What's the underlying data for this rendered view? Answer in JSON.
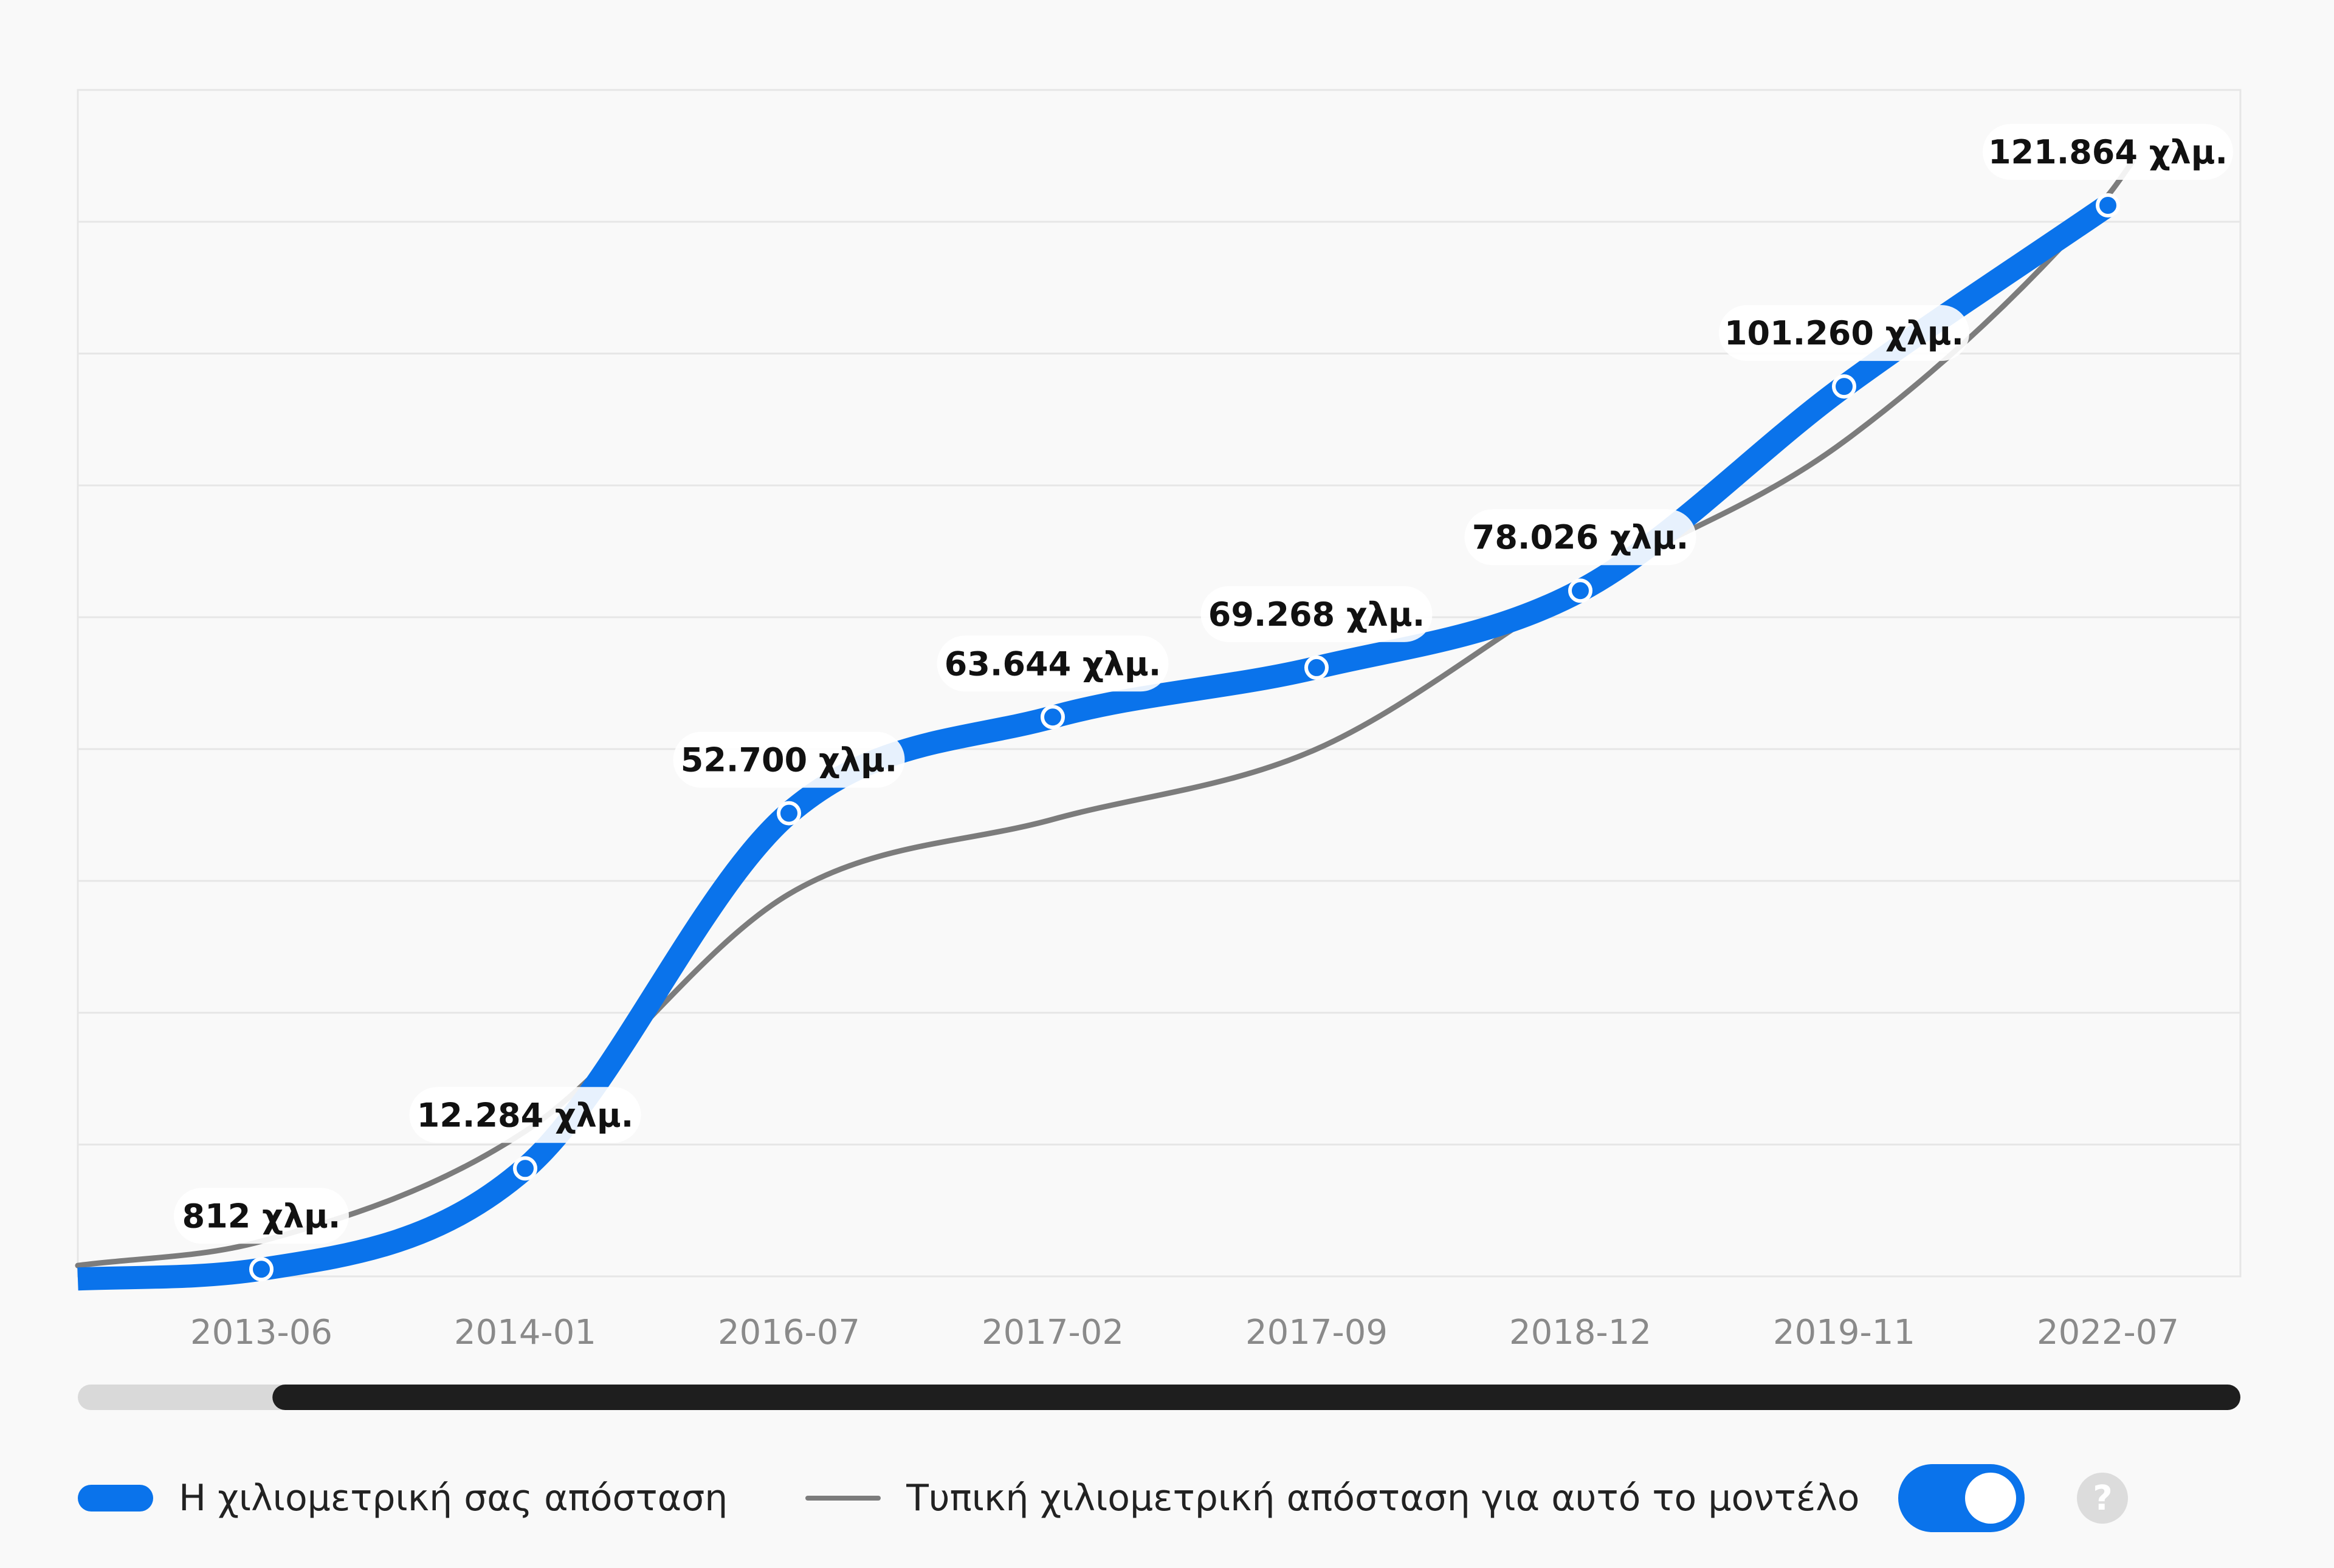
{
  "colors": {
    "user_line": "#0a73eb",
    "typical_line": "#7c7c7c",
    "grid": "#e6e6e6",
    "scrollbar_track": "#d9d9d9",
    "scrollbar_thumb": "#1e1e1e",
    "toggle_on": "#0a73eb"
  },
  "chart_data": {
    "type": "line",
    "title": "",
    "xlabel": "",
    "ylabel": "",
    "categories": [
      "2013-06",
      "2014-01",
      "2016-07",
      "2017-02",
      "2017-09",
      "2018-12",
      "2019-11",
      "2022-07"
    ],
    "data_labels": [
      "812 χλμ.",
      "12.284 χλμ.",
      "52.700 χλμ.",
      "63.644 χλμ.",
      "69.268 χλμ.",
      "78.026 χλμ.",
      "101.260 χλμ.",
      "121.864 χλμ."
    ],
    "series": [
      {
        "name": "Η χιλιομετρική σας απόσταση",
        "values": [
          812,
          12284,
          52700,
          63644,
          69268,
          78026,
          101260,
          121864
        ]
      },
      {
        "name": "Τυπική χιλιομετρική απόσταση για αυτό το μοντέλο",
        "values": [
          4000,
          16500,
          43500,
          52000,
          60000,
          78500,
          95000,
          123000
        ]
      }
    ],
    "ylim": [
      0,
      135000
    ],
    "grid": true,
    "y_tick_labels_shown": false,
    "legend_position": "bottom-left",
    "scrollbar": {
      "visible_start_fraction": 0.09,
      "visible_end_fraction": 1.0
    }
  },
  "legend": {
    "user_label": "Η χιλιομετρική σας απόσταση",
    "typical_label": "Τυπική χιλιομετρική απόσταση για αυτό το μοντέλο",
    "toggle_on": true,
    "help_symbol": "?",
    "help_icon": "question-mark-icon"
  }
}
